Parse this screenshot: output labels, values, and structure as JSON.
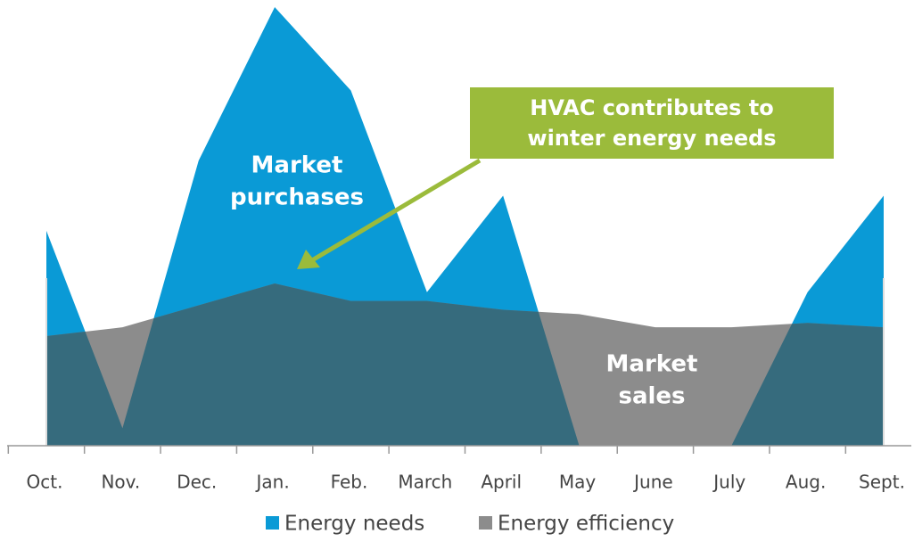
{
  "chart_data": {
    "type": "area",
    "categories": [
      "Oct.",
      "Nov.",
      "Dec.",
      "Jan.",
      "Feb.",
      "March",
      "April",
      "May",
      "June",
      "July",
      "Aug.",
      "Sept."
    ],
    "series": [
      {
        "name": "Energy needs",
        "color": "#0a9ad6",
        "values": [
          49,
          4,
          65,
          100,
          81,
          35,
          57,
          0,
          0,
          0,
          35,
          57
        ]
      },
      {
        "name": "Energy efficiency",
        "color": "#8c8c8c",
        "values": [
          25,
          27,
          32,
          37,
          33,
          33,
          31,
          30,
          27,
          27,
          28,
          27
        ]
      }
    ],
    "overlap_color": "#366b7d",
    "ylim": [
      0,
      100
    ],
    "annotations": [
      {
        "lines": [
          "Market",
          "purchases"
        ]
      },
      {
        "lines": [
          "Market",
          "sales"
        ]
      }
    ],
    "callout": {
      "lines": [
        "HVAC contributes to",
        "winter energy needs"
      ],
      "color": "#9bbb3b"
    }
  }
}
